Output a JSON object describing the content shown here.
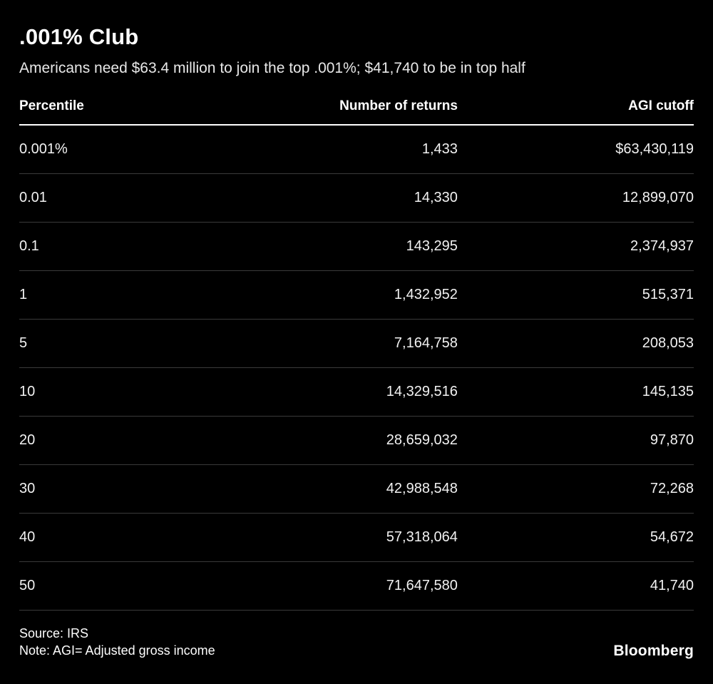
{
  "chart_data": {
    "type": "table",
    "title": ".001% Club",
    "subtitle": "Americans need $63.4 million to join the top .001%; $41,740 to be in top half",
    "columns": [
      "Percentile",
      "Number of returns",
      "AGI cutoff"
    ],
    "rows": [
      [
        "0.001%",
        "1,433",
        "$63,430,119"
      ],
      [
        "0.01",
        "14,330",
        "12,899,070"
      ],
      [
        "0.1",
        "143,295",
        "2,374,937"
      ],
      [
        "1",
        "1,432,952",
        "515,371"
      ],
      [
        "5",
        "7,164,758",
        "208,053"
      ],
      [
        "10",
        "14,329,516",
        "145,135"
      ],
      [
        "20",
        "28,659,032",
        "97,870"
      ],
      [
        "30",
        "42,988,548",
        "72,268"
      ],
      [
        "40",
        "57,318,064",
        "54,672"
      ],
      [
        "50",
        "71,647,580",
        "41,740"
      ]
    ],
    "source": "Source: IRS",
    "note": "Note: AGI= Adjusted gross income",
    "brand": "Bloomberg",
    "colors": {
      "background": "#000000",
      "text": "#ffffff",
      "subtitle": "#e8e8e8",
      "row_divider": "#3a3a3a",
      "header_rule": "#ffffff"
    },
    "layout": {
      "legend": "none",
      "grid": "horizontal row dividers only"
    }
  }
}
